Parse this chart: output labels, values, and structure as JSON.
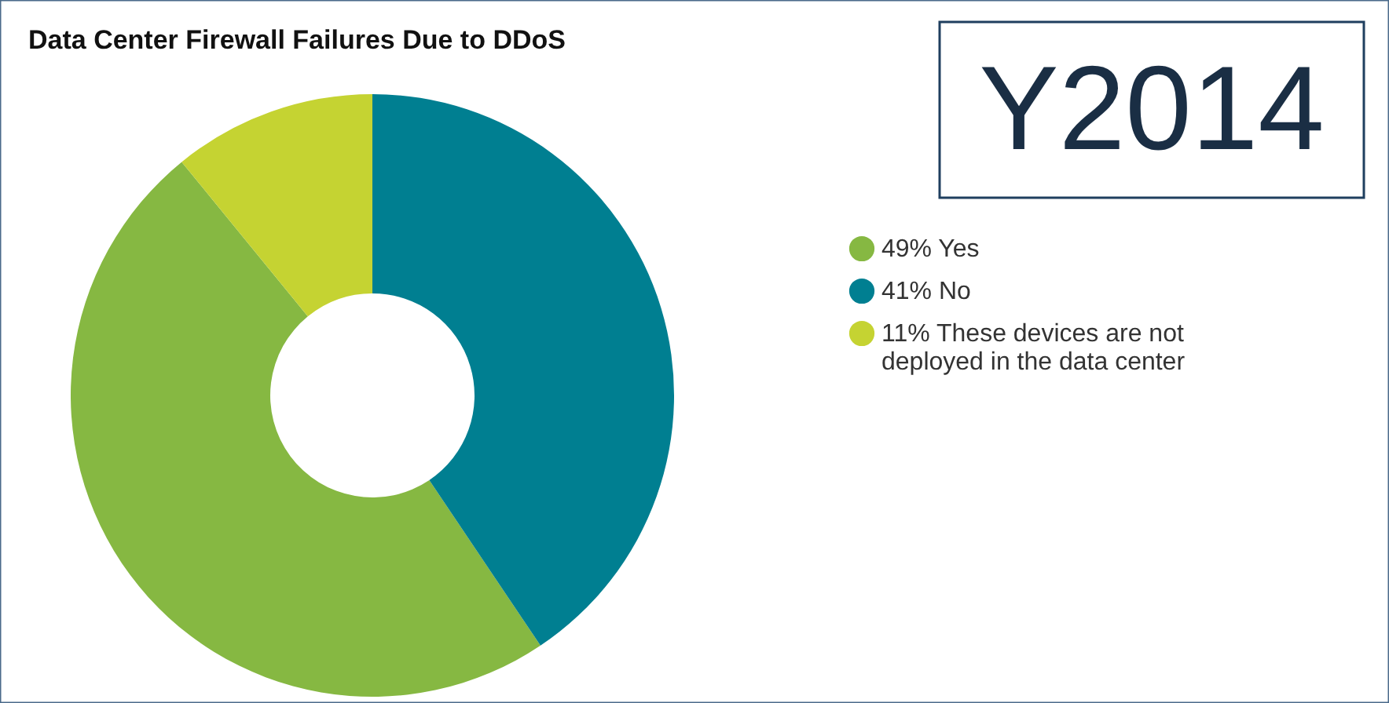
{
  "chart_data": {
    "type": "donut",
    "title": "Data Center Firewall Failures Due to DDoS",
    "categories": [
      "Yes",
      "No",
      "These devices are not deployed in the data center"
    ],
    "values": [
      49,
      41,
      11
    ],
    "value_labels": [
      "49%",
      "41%",
      "11%"
    ],
    "colors": [
      "#86b842",
      "#007f91",
      "#c5d332"
    ],
    "legend": "right",
    "annotations": [
      "Y2014"
    ]
  }
}
